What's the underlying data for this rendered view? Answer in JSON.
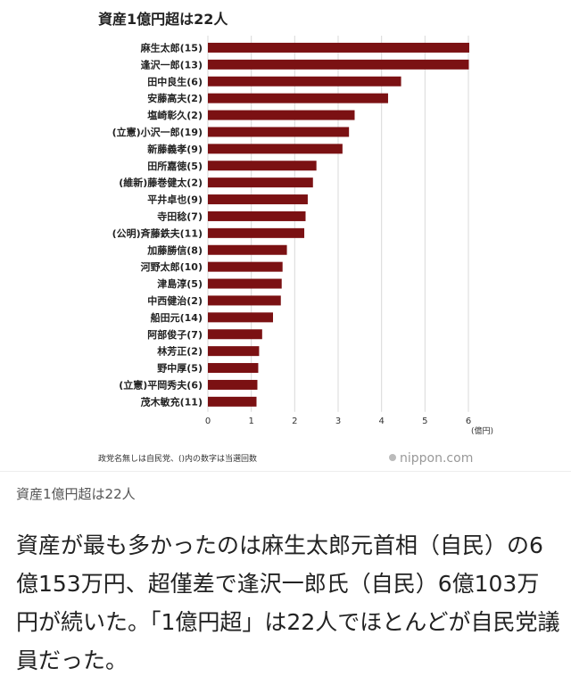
{
  "chart_data": {
    "type": "bar",
    "orientation": "horizontal",
    "title": "資産1億円超は22人",
    "categories": [
      "麻生太郎(15)",
      "逢沢一郎(13)",
      "田中良生(6)",
      "安藤高夫(2)",
      "塩崎彰久(2)",
      "(立憲)小沢一郎(19)",
      "新藤義孝(9)",
      "田所嘉徳(5)",
      "(維新)藤巻健太(2)",
      "平井卓也(9)",
      "寺田稔(7)",
      "(公明)斉藤鉄夫(11)",
      "加藤勝信(8)",
      "河野太郎(10)",
      "津島淳(5)",
      "中西健治(2)",
      "船田元(14)",
      "阿部俊子(7)",
      "林芳正(2)",
      "野中厚(5)",
      "(立憲)平岡秀夫(6)",
      "茂木敏充(11)"
    ],
    "values": [
      6.02,
      6.01,
      4.45,
      4.15,
      3.38,
      3.25,
      3.1,
      2.5,
      2.42,
      2.3,
      2.25,
      2.22,
      1.82,
      1.72,
      1.7,
      1.68,
      1.5,
      1.25,
      1.18,
      1.16,
      1.14,
      1.12
    ],
    "xlim": [
      0,
      6
    ],
    "xticks": [
      "0",
      "1",
      "2",
      "3",
      "4",
      "5",
      "6"
    ],
    "xunit": "(億円)",
    "grid": true,
    "bar_color": "#7b1113",
    "note": "政党名無しは自民党、()内の数字は当選回数",
    "source": "nippon.com"
  },
  "caption": "資産1億円超は22人",
  "article": "資産が最も多かったのは麻生太郎元首相（自民）の6億153万円、超僅差で逢沢一郎氏（自民）6億103万円が続いた。「1億円超」は22人でほとんどが自民党議員だった。"
}
